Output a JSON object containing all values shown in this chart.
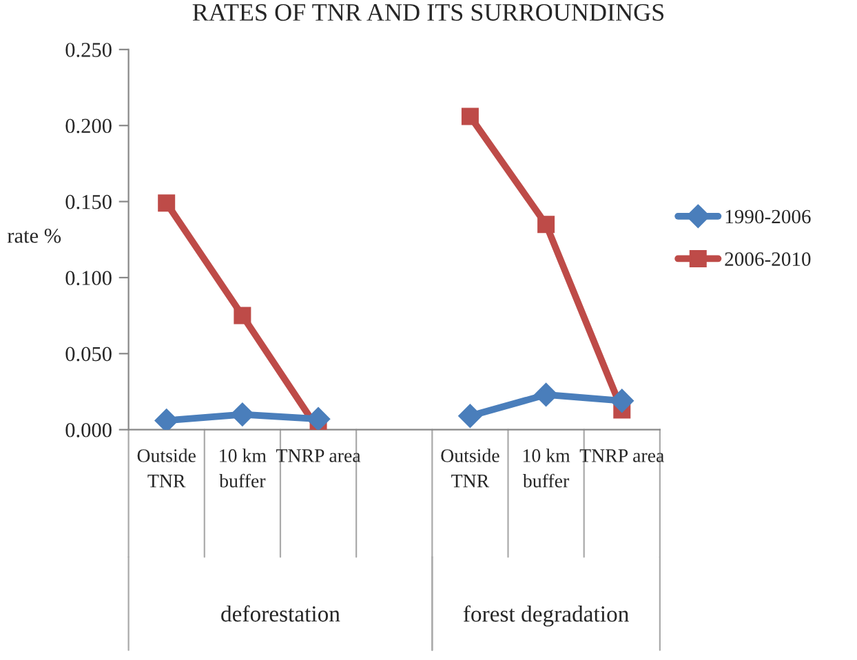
{
  "chart_data": {
    "type": "line",
    "title": "RATES OF TNR AND ITS SURROUNDINGS",
    "ylabel": "rate %",
    "categories": [
      "Outside\nTNR",
      "10 km\nbuffer",
      "TNRP area",
      null,
      "Outside\nTNR",
      "10 km\nbuffer",
      "TNRP area"
    ],
    "series": [
      {
        "name": "1990-2006",
        "color": "#4a7ebb",
        "marker": "diamond",
        "values": [
          0.006,
          0.01,
          0.007,
          null,
          0.009,
          0.023,
          0.019
        ]
      },
      {
        "name": "2006-2010",
        "color": "#be4b48",
        "marker": "square",
        "values": [
          0.149,
          0.075,
          0.0,
          null,
          0.206,
          0.135,
          0.013
        ]
      }
    ],
    "annotations": [
      "deforestation",
      "forest degradation"
    ],
    "ylim": [
      0,
      0.25
    ],
    "yticks": [
      {
        "value": 0,
        "label": "0.000"
      },
      {
        "value": 0.05,
        "label": "0.050"
      },
      {
        "value": 0.1,
        "label": "0.100"
      },
      {
        "value": 0.15,
        "label": "0.150"
      },
      {
        "value": 0.2,
        "label": "0.200"
      },
      {
        "value": 0.25,
        "label": "0.250"
      }
    ],
    "grid": false,
    "legend": "right"
  }
}
